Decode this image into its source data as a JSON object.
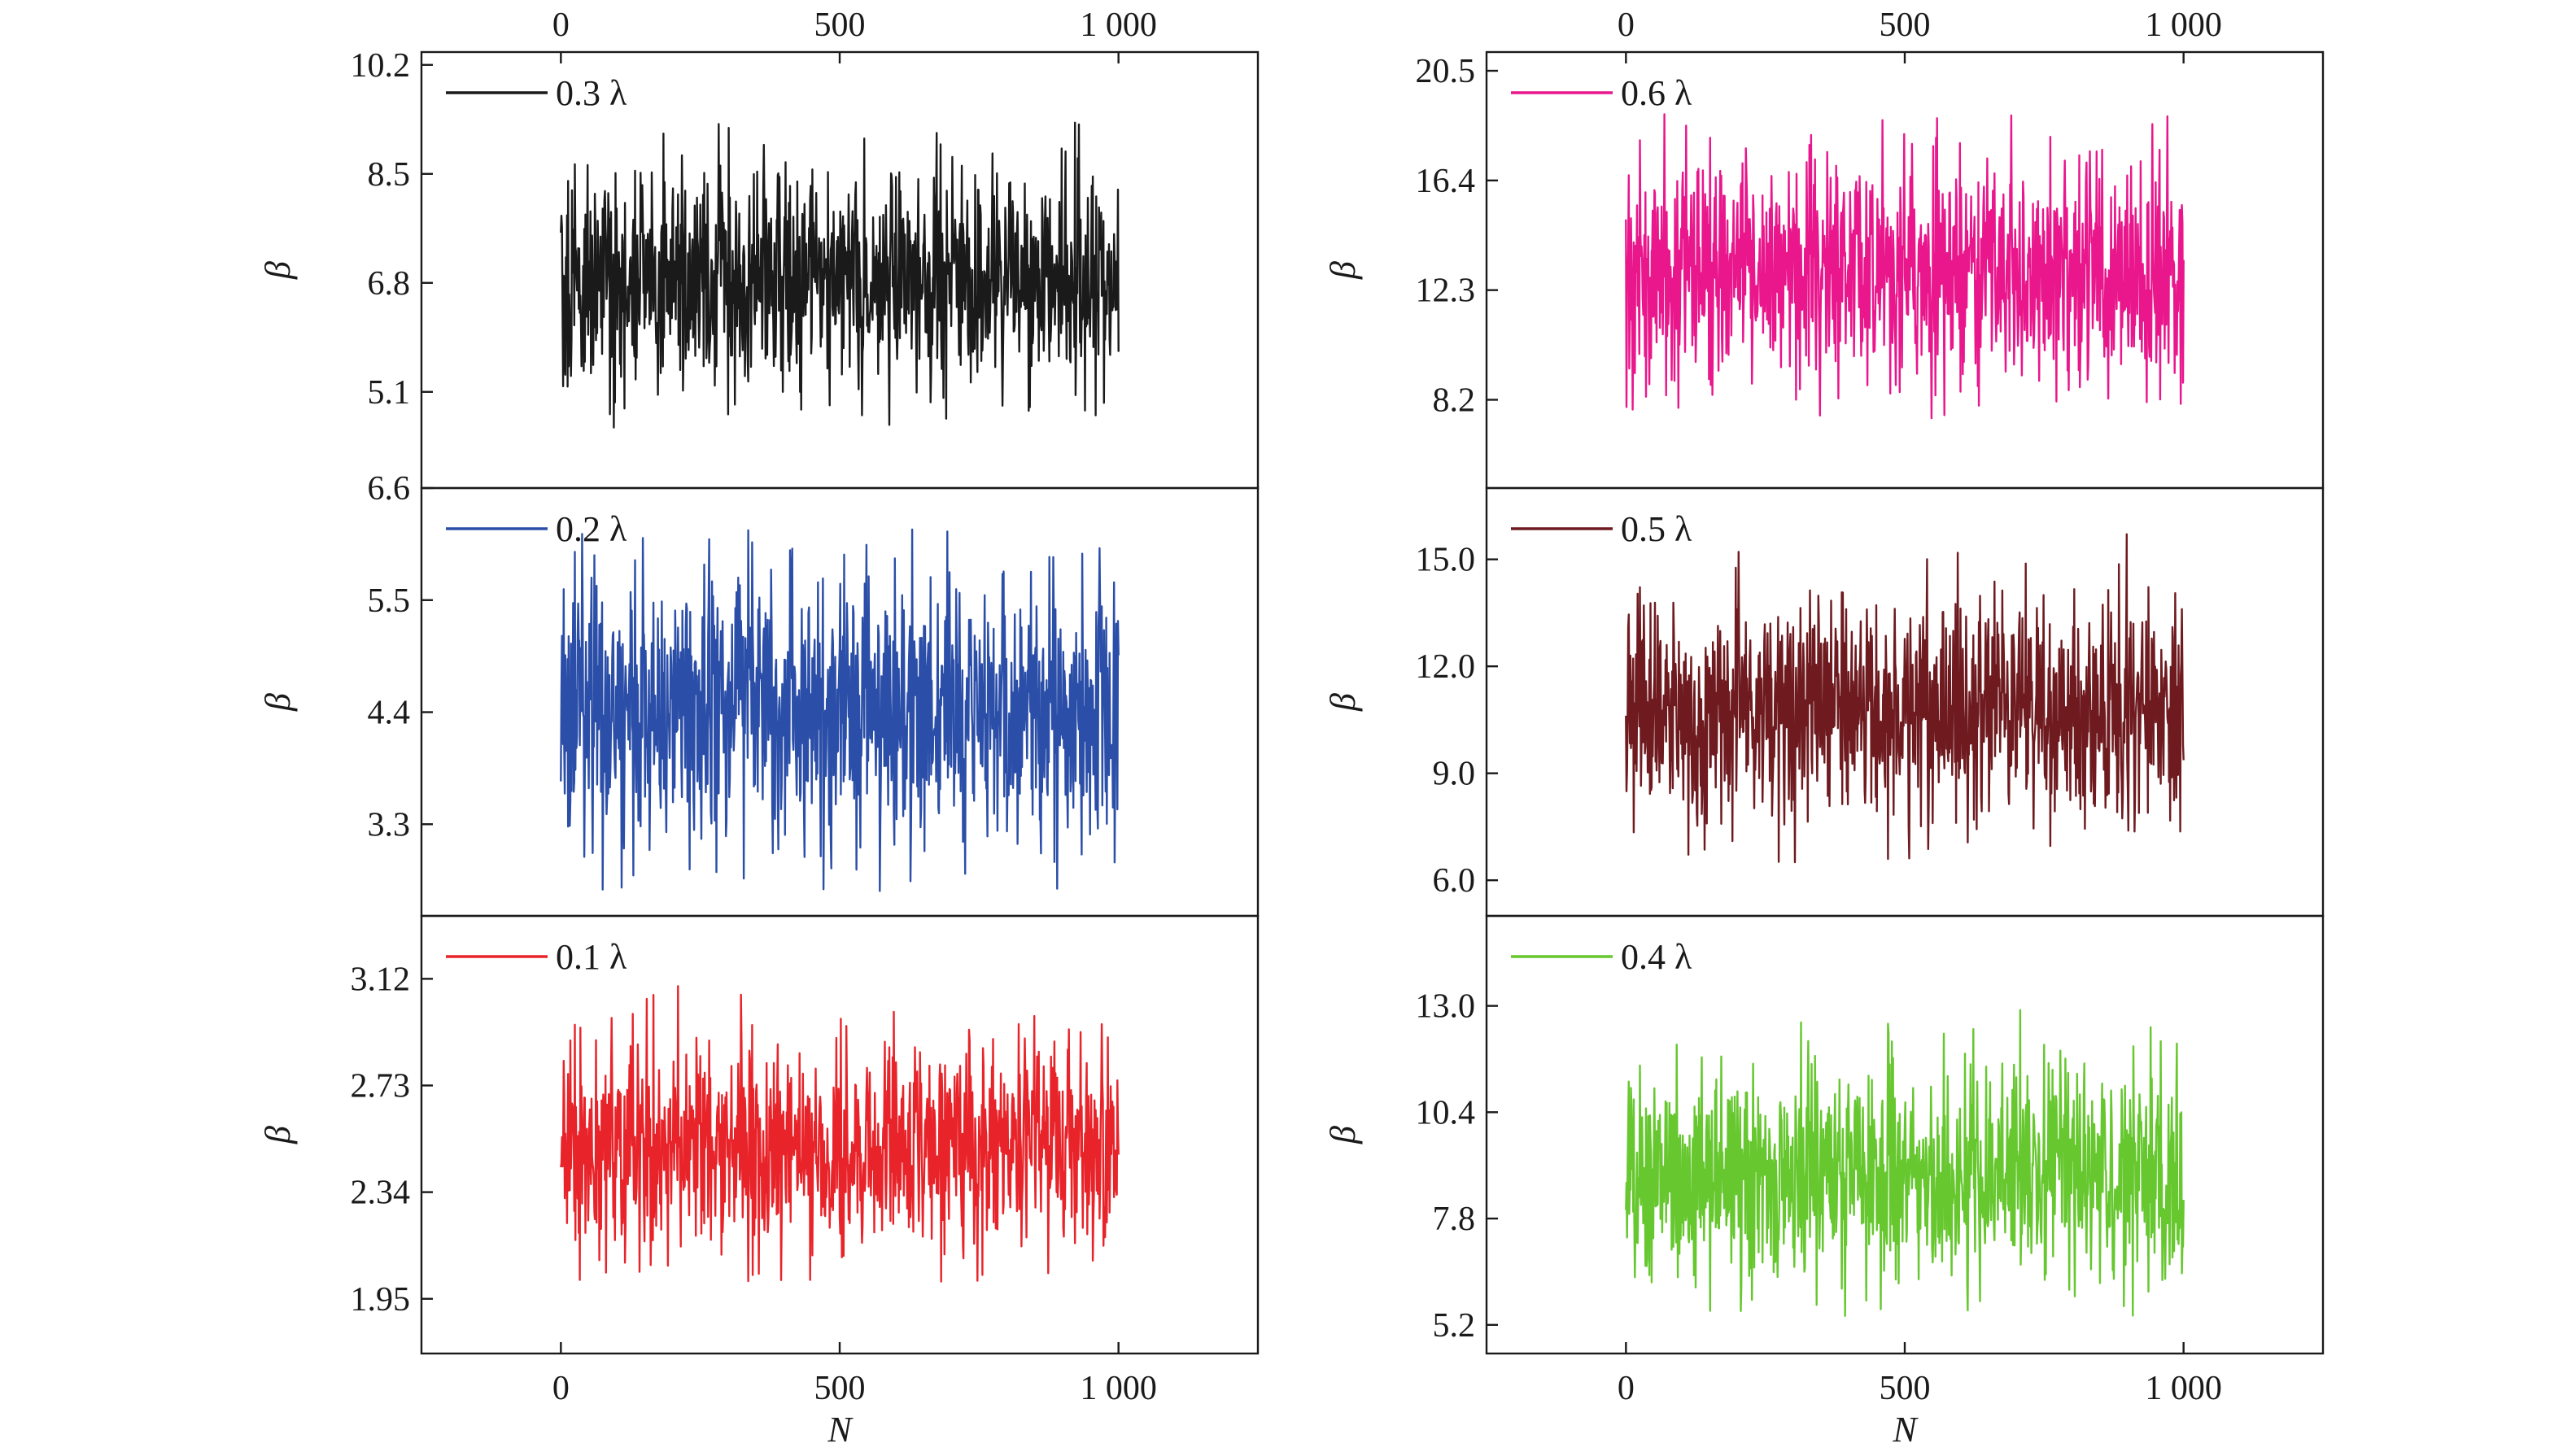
{
  "chart_data": [
    {
      "type": "line",
      "column": "left",
      "row": 0,
      "legend": "0.3 λ",
      "color": "#1a1a1a",
      "ylabel": "β",
      "xlabel": "",
      "x_range": [
        0,
        1000
      ],
      "xlim": [
        -250,
        1250
      ],
      "ylim": [
        3.6,
        10.4
      ],
      "y_ticks": [
        {
          "value": 10.2,
          "label": "10.2"
        },
        {
          "value": 8.5,
          "label": "8.5"
        },
        {
          "value": 6.8,
          "label": "6.8"
        },
        {
          "value": 5.1,
          "label": "5.1"
        }
      ],
      "mean": 6.8,
      "y_min_observed": 4.5,
      "y_max_observed": 9.4,
      "top_axis_ticks": [
        {
          "value": 0,
          "label": "0"
        },
        {
          "value": 500,
          "label": "500"
        },
        {
          "value": 1000,
          "label": "1 000"
        }
      ]
    },
    {
      "type": "line",
      "column": "left",
      "row": 1,
      "legend": "0.2 λ",
      "color": "#2b4ea8",
      "ylabel": "β",
      "xlabel": "",
      "x_range": [
        0,
        1000
      ],
      "xlim": [
        -250,
        1250
      ],
      "ylim": [
        2.4,
        6.6
      ],
      "y_ticks": [
        {
          "value": 6.6,
          "label": "6.6"
        },
        {
          "value": 5.5,
          "label": "5.5"
        },
        {
          "value": 4.4,
          "label": "4.4"
        },
        {
          "value": 3.3,
          "label": "3.3"
        }
      ],
      "mean": 4.4,
      "y_min_observed": 2.6,
      "y_max_observed": 6.2
    },
    {
      "type": "line",
      "column": "left",
      "row": 2,
      "legend": "0.1 λ",
      "color": "#e8242a",
      "ylabel": "β",
      "xlabel": "N",
      "x_range": [
        0,
        1000
      ],
      "xlim": [
        -250,
        1250
      ],
      "ylim": [
        1.75,
        3.35
      ],
      "y_ticks": [
        {
          "value": 3.12,
          "label": "3.12"
        },
        {
          "value": 2.73,
          "label": "2.73"
        },
        {
          "value": 2.34,
          "label": "2.34"
        },
        {
          "value": 1.95,
          "label": "1.95"
        }
      ],
      "mean": 2.5,
      "y_min_observed": 2.0,
      "y_max_observed": 3.2,
      "x_ticks": [
        {
          "value": 0,
          "label": "0"
        },
        {
          "value": 500,
          "label": "500"
        },
        {
          "value": 1000,
          "label": "1 000"
        }
      ]
    },
    {
      "type": "line",
      "column": "right",
      "row": 0,
      "legend": "0.6 λ",
      "color": "#e9168c",
      "ylabel": "β",
      "xlabel": "",
      "x_range": [
        0,
        1000
      ],
      "xlim": [
        -250,
        1250
      ],
      "ylim": [
        4.9,
        21.2
      ],
      "y_ticks": [
        {
          "value": 20.5,
          "label": "20.5"
        },
        {
          "value": 16.4,
          "label": "16.4"
        },
        {
          "value": 12.3,
          "label": "12.3"
        },
        {
          "value": 8.2,
          "label": "8.2"
        }
      ],
      "mean": 13.0,
      "y_min_observed": 7.5,
      "y_max_observed": 18.9,
      "top_axis_ticks": [
        {
          "value": 0,
          "label": "0"
        },
        {
          "value": 500,
          "label": "500"
        },
        {
          "value": 1000,
          "label": "1 000"
        }
      ]
    },
    {
      "type": "line",
      "column": "right",
      "row": 1,
      "legend": "0.5 λ",
      "color": "#6e1a1f",
      "ylabel": "β",
      "xlabel": "",
      "x_range": [
        0,
        1000
      ],
      "xlim": [
        -250,
        1250
      ],
      "ylim": [
        5.0,
        17.0
      ],
      "y_ticks": [
        {
          "value": 15.0,
          "label": "15.0"
        },
        {
          "value": 12.0,
          "label": "12.0"
        },
        {
          "value": 9.0,
          "label": "9.0"
        },
        {
          "value": 6.0,
          "label": "6.0"
        }
      ],
      "mean": 10.7,
      "y_min_observed": 6.5,
      "y_max_observed": 15.8
    },
    {
      "type": "line",
      "column": "right",
      "row": 2,
      "legend": "0.4 λ",
      "color": "#66c72f",
      "ylabel": "β",
      "xlabel": "N",
      "x_range": [
        0,
        1000
      ],
      "xlim": [
        -250,
        1250
      ],
      "ylim": [
        4.5,
        15.2
      ],
      "y_ticks": [
        {
          "value": 13.0,
          "label": "13.0"
        },
        {
          "value": 10.4,
          "label": "10.4"
        },
        {
          "value": 7.8,
          "label": "7.8"
        },
        {
          "value": 5.2,
          "label": "5.2"
        }
      ],
      "mean": 8.9,
      "y_min_observed": 5.4,
      "y_max_observed": 13.5,
      "x_ticks": [
        {
          "value": 0,
          "label": "0"
        },
        {
          "value": 500,
          "label": "500"
        },
        {
          "value": 1000,
          "label": "1 000"
        }
      ]
    }
  ]
}
